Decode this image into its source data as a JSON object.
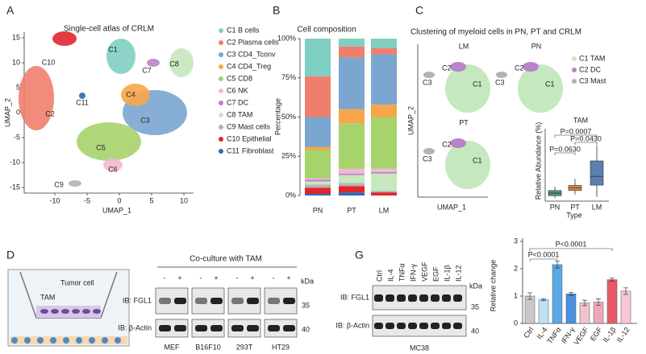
{
  "panel_labels": [
    "A",
    "B",
    "C",
    "D",
    "G"
  ],
  "umap": {
    "title": "Single-cell atlas of CRLM",
    "xlabel": "UMAP_1",
    "ylabel": "UMAP_2",
    "xlim": [
      -14,
      13
    ],
    "ylim": [
      -17,
      17
    ],
    "xticks": [
      -10,
      -5,
      0,
      5,
      10
    ],
    "yticks": [
      15,
      10,
      5,
      0,
      -5,
      -10,
      -15
    ],
    "clusters": [
      {
        "id": "C1",
        "name": "B cells",
        "color": "#7fcfc3"
      },
      {
        "id": "C2",
        "name": "Plasma cells",
        "color": "#f07e6e"
      },
      {
        "id": "C3",
        "name": "CD4_Tconv",
        "color": "#7aa6d0"
      },
      {
        "id": "C4",
        "name": "CD4_Treg",
        "color": "#f7a64a"
      },
      {
        "id": "C5",
        "name": "CD8",
        "color": "#a6d36b"
      },
      {
        "id": "C6",
        "name": "NK",
        "color": "#f4b8d4"
      },
      {
        "id": "C7",
        "name": "DC",
        "color": "#b883c8"
      },
      {
        "id": "C8",
        "name": "TAM",
        "color": "#c5e8be"
      },
      {
        "id": "C9",
        "name": "Mast cells",
        "color": "#b3b3b3"
      },
      {
        "id": "C10",
        "name": "Epithelial",
        "color": "#e0262d"
      },
      {
        "id": "C11",
        "name": "Fibroblast",
        "color": "#2a6cb6"
      }
    ]
  },
  "myeloid": {
    "title": "Clustering of myeloid cells in PN, PT and CRLM",
    "xlabel": "UMAP_1",
    "ylabel": "UMAP_2",
    "panels": [
      "LM",
      "PN",
      "PT"
    ],
    "clusters": [
      {
        "id": "C1",
        "name": "TAM",
        "color": "#c5e8be"
      },
      {
        "id": "C2",
        "name": "DC",
        "color": "#b883c8"
      },
      {
        "id": "C3",
        "name": "Mast",
        "color": "#b3b3b3"
      }
    ]
  },
  "chart_data": [
    {
      "type": "stacked_bar",
      "title": "Cell composition",
      "ylabel": "Percentage",
      "categories": [
        "PN",
        "PT",
        "LM"
      ],
      "ylim": [
        0,
        100
      ],
      "yticks": [
        {
          "value": 0,
          "label": "0%"
        },
        {
          "value": 25,
          "label": "25%"
        },
        {
          "value": 50,
          "label": "50%"
        },
        {
          "value": 75,
          "label": "75%"
        },
        {
          "value": 100,
          "label": "100%"
        }
      ],
      "series": [
        {
          "color": "#2a6cb6",
          "values": [
            1,
            2,
            0
          ]
        },
        {
          "color": "#e0262d",
          "values": [
            4,
            4,
            2
          ]
        },
        {
          "color": "#b3b3b3",
          "values": [
            2,
            2,
            1
          ]
        },
        {
          "color": "#c5e8be",
          "values": [
            2,
            5,
            11
          ]
        },
        {
          "color": "#b883c8",
          "values": [
            1,
            1,
            1
          ]
        },
        {
          "color": "#f4b8d4",
          "values": [
            1,
            3,
            2
          ]
        },
        {
          "color": "#a6d36b",
          "values": [
            18,
            29,
            33
          ]
        },
        {
          "color": "#f7a64a",
          "values": [
            2,
            9,
            8
          ]
        },
        {
          "color": "#7aa6d0",
          "values": [
            19,
            33,
            32
          ]
        },
        {
          "color": "#f07e6e",
          "values": [
            26,
            7,
            4
          ]
        },
        {
          "color": "#7fcfc3",
          "values": [
            24,
            5,
            6
          ]
        }
      ]
    },
    {
      "type": "box",
      "title": "TAM",
      "ylabel": "Relative Abundance (%)",
      "xlabel": "Type",
      "categories": [
        "PN",
        "PT",
        "LM"
      ],
      "colors": [
        "#4a9a70",
        "#d88a48",
        "#5a7fb0"
      ],
      "ylim": [
        0,
        25
      ],
      "boxes": [
        {
          "min": 0.5,
          "q1": 1.5,
          "median": 2.5,
          "q3": 3.5,
          "max": 5
        },
        {
          "min": 2,
          "q1": 3.5,
          "median": 4.5,
          "q3": 5.5,
          "max": 8
        },
        {
          "min": 1,
          "q1": 5.6,
          "median": 9,
          "q3": 15,
          "max": 21
        }
      ],
      "annotations": [
        {
          "text": "P=0.0007",
          "pair": [
            0,
            2
          ]
        },
        {
          "text": "P=0.0430",
          "pair": [
            1,
            2
          ]
        },
        {
          "text": "P=0.0630",
          "pair": [
            0,
            1
          ]
        }
      ]
    },
    {
      "type": "bar",
      "ylabel": "Relative change",
      "categories": [
        "Ctrl",
        "IL-4",
        "TNFα",
        "IFN-γ",
        "VEGF",
        "EGF",
        "IL-1β",
        "IL-12"
      ],
      "values": [
        1.0,
        0.87,
        2.15,
        1.08,
        0.75,
        0.78,
        1.6,
        1.18
      ],
      "errors": [
        0.12,
        0.04,
        0.12,
        0.05,
        0.1,
        0.12,
        0.06,
        0.12
      ],
      "colors": [
        "#c8c8c8",
        "#bfe0f5",
        "#5aa8e6",
        "#4a90e2",
        "#f2c2cf",
        "#f0a6b6",
        "#e85a6a",
        "#f5c8d8"
      ],
      "ylim": [
        0,
        3
      ],
      "yticks": [
        0,
        1,
        2,
        3
      ],
      "annotations": [
        {
          "text": "P<0.0001",
          "pair": [
            0,
            2
          ]
        },
        {
          "text": "P<0.0001",
          "pair": [
            0,
            6
          ]
        }
      ]
    }
  ],
  "schematic": {
    "labels": [
      "Tumor cell",
      "TAM"
    ]
  },
  "blot_d": {
    "title": "Co-culture with TAM",
    "lanes": [
      "-",
      "+",
      "-",
      "+",
      "-",
      "+",
      "-",
      "+"
    ],
    "rows": [
      "IB: FGL1",
      "IB: β-Actin"
    ],
    "unit": "kDa",
    "markers": [
      35,
      40
    ],
    "groups": [
      "MEF",
      "B16F10",
      "293T",
      "HT29"
    ]
  },
  "blot_g": {
    "lanes": [
      "Ctrl",
      "IL-4",
      "TNFα",
      "IFN-γ",
      "VEGF",
      "EGF",
      "IL-1β",
      "IL-12"
    ],
    "rows": [
      "IB: FGL1",
      "IB: β-Actin"
    ],
    "unit": "kDa",
    "markers": [
      35,
      40
    ],
    "cell_line": "MC38"
  }
}
